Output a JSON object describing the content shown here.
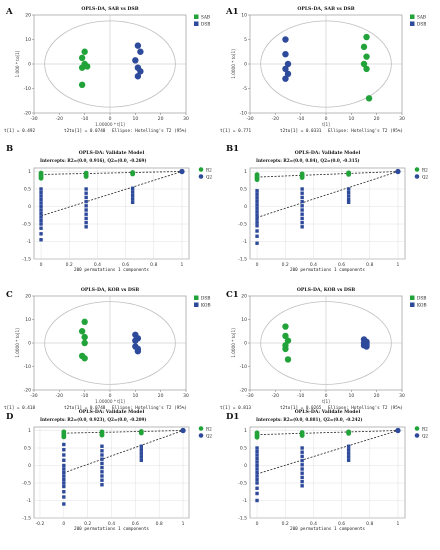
{
  "colors": {
    "green": "#22a33a",
    "blue": "#2e4a9a",
    "ellipse": "#bfbfbf",
    "line": "#222222",
    "grid": "#d8d8d8"
  },
  "chart_data": [
    {
      "id": "A",
      "label": "A",
      "type": "scatter",
      "title": "OPLS-DA, SAB vs DSB",
      "xlabel": "1.00000 * t[1]",
      "ylabel": "1.000 * to[1]",
      "footer": [
        "t[1] = 0.492",
        "t2to[1] = 0.0748",
        "Ellipse: Hotelling's T2 (95%)"
      ],
      "xlim": [
        -30,
        30
      ],
      "ylim": [
        -20,
        20
      ],
      "xticks": [
        -30,
        -20,
        -10,
        0,
        10,
        20,
        30
      ],
      "yticks": [
        -20,
        -10,
        0,
        10,
        20
      ],
      "xtick_labels": [
        "-30",
        "-20",
        "-10",
        "0",
        "10",
        "20",
        "30"
      ],
      "ytick_labels": [
        "-20",
        "-10",
        "0",
        "10",
        "20"
      ],
      "legend": {
        "placement": "top-right"
      },
      "series": [
        {
          "name": "SAB",
          "color": "green",
          "points": [
            [
              -10,
              5
            ],
            [
              -11,
              2.5
            ],
            [
              -10,
              0
            ],
            [
              -11,
              -1.5
            ],
            [
              -9,
              -1
            ],
            [
              -11,
              -8.5
            ]
          ]
        },
        {
          "name": "DSB",
          "color": "blue",
          "points": [
            [
              11,
              7.5
            ],
            [
              12,
              5
            ],
            [
              10,
              1.5
            ],
            [
              11,
              -1.5
            ],
            [
              12,
              -3
            ],
            [
              11,
              -5
            ]
          ]
        }
      ]
    },
    {
      "id": "A1",
      "label": "A1",
      "type": "scatter",
      "title": "OPLS-DA, SAB vs DSB",
      "xlabel": "t[1]",
      "ylabel": "1.0000 * to[1]",
      "footer": [
        "t[1] = 0.771",
        "t2to[1] = 0.0331",
        "Ellipse: Hotelling's T2 (95%)"
      ],
      "xlim": [
        -30,
        30
      ],
      "ylim": [
        -10,
        10
      ],
      "xticks": [
        -30,
        -20,
        -10,
        0,
        10,
        20,
        30
      ],
      "yticks": [
        -10,
        -5,
        0,
        5,
        10
      ],
      "xtick_labels": [
        "-30",
        "-20",
        "-10",
        "0",
        "10",
        "20",
        "30"
      ],
      "ytick_labels": [
        "-10",
        "-5",
        "0",
        "5",
        "10"
      ],
      "legend": {
        "placement": "top-right"
      },
      "series": [
        {
          "name": "SAB",
          "color": "green",
          "points": [
            [
              16,
              5.5
            ],
            [
              15,
              3.5
            ],
            [
              16,
              1.5
            ],
            [
              15,
              0
            ],
            [
              16,
              -1
            ],
            [
              17,
              -7
            ]
          ]
        },
        {
          "name": "DSB",
          "color": "blue",
          "points": [
            [
              -16,
              5
            ],
            [
              -16,
              2
            ],
            [
              -15,
              0
            ],
            [
              -16,
              -1
            ],
            [
              -15,
              -2
            ],
            [
              -16,
              -3
            ]
          ]
        }
      ]
    },
    {
      "id": "B",
      "label": "B",
      "type": "permutation",
      "title": "OPLS-DA: Validate Model",
      "subtitle": "Intercepts: R2=(0.0, 0.916), Q2=(0.0, -0.269)",
      "footer": [
        "200 permutations 1 components"
      ],
      "xlim": [
        -0.05,
        1.05
      ],
      "ylim": [
        -1.5,
        1.1
      ],
      "xticks": [
        0,
        0.2,
        0.4,
        0.6,
        0.8,
        1
      ],
      "yticks": [
        -1.5,
        -1,
        -0.5,
        0,
        0.5,
        1
      ],
      "xtick_labels": [
        "0",
        "0.2",
        "0.4",
        "0.6",
        "0.8",
        "1"
      ],
      "ytick_labels": [
        "-1.5",
        "-1",
        "-0.5",
        "0",
        "0.5",
        "1"
      ],
      "legend": {
        "placement": "top-right"
      },
      "r2_line": [
        [
          0,
          0.916
        ],
        [
          1,
          1
        ]
      ],
      "q2_line": [
        [
          0,
          -0.269
        ],
        [
          1,
          1
        ]
      ],
      "series": [
        {
          "name": "R2",
          "color": "green",
          "x": [
            0.0,
            0.0,
            0.0,
            0.0,
            0.0,
            0.32,
            0.32,
            0.32,
            0.32,
            0.65,
            0.65,
            0.65,
            1.0
          ],
          "y": [
            0.96,
            0.92,
            0.88,
            0.84,
            0.8,
            0.96,
            0.92,
            0.88,
            0.85,
            0.98,
            0.95,
            0.92,
            1.0
          ]
        },
        {
          "name": "Q2",
          "color": "blue",
          "x": [
            0.0,
            0.0,
            0.0,
            0.0,
            0.0,
            0.0,
            0.0,
            0.0,
            0.0,
            0.0,
            0.0,
            0.0,
            0.0,
            0.0,
            0.32,
            0.32,
            0.32,
            0.32,
            0.32,
            0.32,
            0.32,
            0.32,
            0.32,
            0.32,
            0.65,
            0.65,
            0.65,
            0.65,
            0.65,
            1.0
          ],
          "y": [
            0.5,
            0.4,
            0.3,
            0.2,
            0.1,
            0.0,
            -0.1,
            -0.2,
            -0.3,
            -0.4,
            -0.5,
            -0.62,
            -0.78,
            -0.95,
            0.5,
            0.38,
            0.26,
            0.14,
            0.02,
            -0.1,
            -0.22,
            -0.34,
            -0.46,
            -0.58,
            0.52,
            0.42,
            0.32,
            0.22,
            0.12,
            1.0
          ]
        }
      ]
    },
    {
      "id": "B1",
      "label": "B1",
      "type": "permutation",
      "title": "OPLS-DA: Validate Model",
      "subtitle": "Intercepts: R2=(0.0, 0.84), Q2=(0.0, -0.315)",
      "footer": [
        "200 permutations 1 components"
      ],
      "xlim": [
        -0.05,
        1.05
      ],
      "ylim": [
        -1.5,
        1.1
      ],
      "xticks": [
        0,
        0.2,
        0.4,
        0.6,
        0.8,
        1
      ],
      "yticks": [
        -1.5,
        -1,
        -0.5,
        0,
        0.5,
        1
      ],
      "xtick_labels": [
        "0",
        "0.2",
        "0.4",
        "0.6",
        "0.8",
        "1"
      ],
      "ytick_labels": [
        "-1.5",
        "-1",
        "-0.5",
        "0",
        "0.5",
        "1"
      ],
      "legend": {
        "placement": "top-right"
      },
      "r2_line": [
        [
          0,
          0.84
        ],
        [
          1,
          1
        ]
      ],
      "q2_line": [
        [
          0,
          -0.315
        ],
        [
          1,
          1
        ]
      ],
      "series": [
        {
          "name": "R2",
          "color": "green",
          "x": [
            0.0,
            0.0,
            0.0,
            0.0,
            0.0,
            0.32,
            0.32,
            0.32,
            0.32,
            0.65,
            0.65,
            0.65,
            1.0
          ],
          "y": [
            0.92,
            0.88,
            0.84,
            0.8,
            0.76,
            0.94,
            0.9,
            0.86,
            0.82,
            0.97,
            0.94,
            0.91,
            1.0
          ]
        },
        {
          "name": "Q2",
          "color": "blue",
          "x": [
            0.0,
            0.0,
            0.0,
            0.0,
            0.0,
            0.0,
            0.0,
            0.0,
            0.0,
            0.0,
            0.0,
            0.0,
            0.0,
            0.0,
            0.32,
            0.32,
            0.32,
            0.32,
            0.32,
            0.32,
            0.32,
            0.32,
            0.32,
            0.32,
            0.65,
            0.65,
            0.65,
            0.65,
            0.65,
            1.0
          ],
          "y": [
            0.45,
            0.35,
            0.25,
            0.15,
            0.05,
            -0.05,
            -0.15,
            -0.25,
            -0.35,
            -0.45,
            -0.55,
            -0.7,
            -0.85,
            -1.05,
            0.5,
            0.38,
            0.26,
            0.14,
            0.02,
            -0.1,
            -0.22,
            -0.34,
            -0.46,
            -0.58,
            0.5,
            0.4,
            0.3,
            0.2,
            0.12,
            1.0
          ]
        }
      ]
    },
    {
      "id": "C",
      "label": "C",
      "type": "scatter",
      "title": "OPLS-DA, KOB vs DSB",
      "xlabel": "1.00000 * t[1]",
      "ylabel": "1.0000 * to[1]",
      "footer": [
        "t[1] = 0.418",
        "t2to[1] = 0.0748",
        "Ellipse: Hotelling's T2 (95%)"
      ],
      "xlim": [
        -30,
        30
      ],
      "ylim": [
        -20,
        20
      ],
      "xticks": [
        -30,
        -20,
        -10,
        0,
        10,
        20,
        30
      ],
      "yticks": [
        -20,
        -10,
        0,
        10,
        20
      ],
      "xtick_labels": [
        "-30",
        "-20",
        "-10",
        "0",
        "10",
        "20",
        "30"
      ],
      "ytick_labels": [
        "-20",
        "-10",
        "0",
        "10",
        "20"
      ],
      "legend": {
        "placement": "top-right"
      },
      "series": [
        {
          "name": "DSB",
          "color": "green",
          "points": [
            [
              -10,
              9
            ],
            [
              -11,
              5
            ],
            [
              -10,
              2.5
            ],
            [
              -10,
              0
            ],
            [
              -11,
              -5.5
            ],
            [
              -10,
              -6.5
            ]
          ]
        },
        {
          "name": "KOB",
          "color": "blue",
          "points": [
            [
              10,
              3.5
            ],
            [
              11,
              2
            ],
            [
              10,
              1
            ],
            [
              10,
              -1.5
            ],
            [
              11,
              -2.5
            ],
            [
              11,
              -3.5
            ]
          ]
        }
      ]
    },
    {
      "id": "C1",
      "label": "C1",
      "type": "scatter",
      "title": "OPLS-DA, KOB vs DSB",
      "xlabel": "t[1]",
      "ylabel": "1.0000 * to[1]",
      "footer": [
        "t[1] = 0.813",
        "t2to[1] = 0.0265",
        "Ellipse: Hotelling's T2 (95%)"
      ],
      "xlim": [
        -30,
        30
      ],
      "ylim": [
        -20,
        20
      ],
      "xticks": [
        -30,
        -20,
        -10,
        0,
        10,
        20,
        30
      ],
      "yticks": [
        -20,
        -10,
        0,
        10,
        20
      ],
      "xtick_labels": [
        "-30",
        "-20",
        "-10",
        "0",
        "10",
        "20",
        "30"
      ],
      "ytick_labels": [
        "-20",
        "-10",
        "0",
        "10",
        "20"
      ],
      "legend": {
        "placement": "top-right"
      },
      "series": [
        {
          "name": "DSB",
          "color": "green",
          "points": [
            [
              -16,
              7
            ],
            [
              -16,
              3
            ],
            [
              -15,
              1
            ],
            [
              -16,
              -1
            ],
            [
              -16,
              -2.5
            ],
            [
              -15,
              -7
            ]
          ]
        },
        {
          "name": "KOB",
          "color": "blue",
          "points": [
            [
              15,
              1.5
            ],
            [
              16,
              0.5
            ],
            [
              15,
              0
            ],
            [
              16,
              -0.5
            ],
            [
              15,
              -1
            ],
            [
              16,
              -1.5
            ]
          ]
        }
      ]
    },
    {
      "id": "D",
      "label": "D",
      "type": "permutation",
      "title": "OPLS-DA: Validate Model",
      "subtitle": "Intercepts: R2=(0.0, 0.923), Q2=(0.0, -0.209)",
      "footer": [
        "200 permutations 1 components"
      ],
      "xlim": [
        -0.25,
        1.05
      ],
      "ylim": [
        -1.5,
        1.1
      ],
      "xticks": [
        -0.2,
        0,
        0.2,
        0.4,
        0.6,
        0.8,
        1
      ],
      "yticks": [
        -1.5,
        -1,
        -0.5,
        0,
        0.5,
        1
      ],
      "xtick_labels": [
        "-0.2",
        "0",
        "0.2",
        "0.4",
        "0.6",
        "0.8",
        "1"
      ],
      "ytick_labels": [
        "-1.5",
        "-1",
        "-0.5",
        "0",
        "0.5",
        "1"
      ],
      "legend": {
        "placement": "top-right"
      },
      "r2_line": [
        [
          0,
          0.923
        ],
        [
          1,
          1
        ]
      ],
      "q2_line": [
        [
          0,
          -0.209
        ],
        [
          1,
          1
        ]
      ],
      "series": [
        {
          "name": "R2",
          "color": "green",
          "x": [
            0.0,
            0.0,
            0.0,
            0.0,
            0.0,
            0.32,
            0.32,
            0.32,
            0.32,
            0.65,
            0.65,
            0.65,
            1.0
          ],
          "y": [
            0.97,
            0.93,
            0.89,
            0.85,
            0.81,
            0.97,
            0.93,
            0.89,
            0.86,
            0.98,
            0.95,
            0.92,
            1.0
          ]
        },
        {
          "name": "Q2",
          "color": "blue",
          "x": [
            0.0,
            0.0,
            0.0,
            0.0,
            0.0,
            0.0,
            0.0,
            0.0,
            0.0,
            0.0,
            0.0,
            0.0,
            0.0,
            0.0,
            0.32,
            0.32,
            0.32,
            0.32,
            0.32,
            0.32,
            0.32,
            0.32,
            0.32,
            0.32,
            0.65,
            0.65,
            0.65,
            0.65,
            0.65,
            1.0
          ],
          "y": [
            0.6,
            0.45,
            0.3,
            0.15,
            0.0,
            -0.1,
            -0.2,
            -0.3,
            -0.4,
            -0.5,
            -0.6,
            -0.75,
            -0.9,
            -1.1,
            0.55,
            0.42,
            0.3,
            0.18,
            0.06,
            -0.06,
            -0.18,
            -0.3,
            -0.42,
            -0.55,
            0.55,
            0.45,
            0.35,
            0.25,
            0.15,
            1.0
          ]
        }
      ]
    },
    {
      "id": "D1",
      "label": "D1",
      "type": "permutation",
      "title": "OPLS-DA: Validate Model",
      "subtitle": "Intercepts: R2=(0.0, 0.881), Q2=(0.0, -0.242)",
      "footer": [
        "200 permutations 1 components"
      ],
      "xlim": [
        -0.05,
        1.05
      ],
      "ylim": [
        -1.5,
        1.1
      ],
      "xticks": [
        0,
        0.2,
        0.4,
        0.6,
        0.8,
        1
      ],
      "yticks": [
        -1.5,
        -1,
        -0.5,
        0,
        0.5,
        1
      ],
      "xtick_labels": [
        "0",
        "0.2",
        "0.4",
        "0.6",
        "0.8",
        "1"
      ],
      "ytick_labels": [
        "-1.5",
        "-1",
        "-0.5",
        "0",
        "0.5",
        "1"
      ],
      "legend": {
        "placement": "top-right"
      },
      "r2_line": [
        [
          0,
          0.881
        ],
        [
          1,
          1
        ]
      ],
      "q2_line": [
        [
          0,
          -0.242
        ],
        [
          1,
          1
        ]
      ],
      "series": [
        {
          "name": "R2",
          "color": "green",
          "x": [
            0.0,
            0.0,
            0.0,
            0.0,
            0.0,
            0.32,
            0.32,
            0.32,
            0.32,
            0.65,
            0.65,
            0.65,
            1.0
          ],
          "y": [
            0.94,
            0.9,
            0.86,
            0.83,
            0.8,
            0.95,
            0.91,
            0.88,
            0.85,
            0.97,
            0.94,
            0.91,
            1.0
          ]
        },
        {
          "name": "Q2",
          "color": "blue",
          "x": [
            0.0,
            0.0,
            0.0,
            0.0,
            0.0,
            0.0,
            0.0,
            0.0,
            0.0,
            0.0,
            0.0,
            0.0,
            0.0,
            0.0,
            0.32,
            0.32,
            0.32,
            0.32,
            0.32,
            0.32,
            0.32,
            0.32,
            0.32,
            0.32,
            0.65,
            0.65,
            0.65,
            0.65,
            0.65,
            1.0
          ],
          "y": [
            0.5,
            0.4,
            0.3,
            0.2,
            0.1,
            0.0,
            -0.1,
            -0.2,
            -0.3,
            -0.4,
            -0.5,
            -0.65,
            -0.8,
            -1.0,
            0.5,
            0.38,
            0.26,
            0.14,
            0.02,
            -0.1,
            -0.22,
            -0.34,
            -0.46,
            -0.58,
            0.55,
            0.45,
            0.35,
            0.25,
            0.15,
            1.0
          ]
        }
      ]
    }
  ]
}
